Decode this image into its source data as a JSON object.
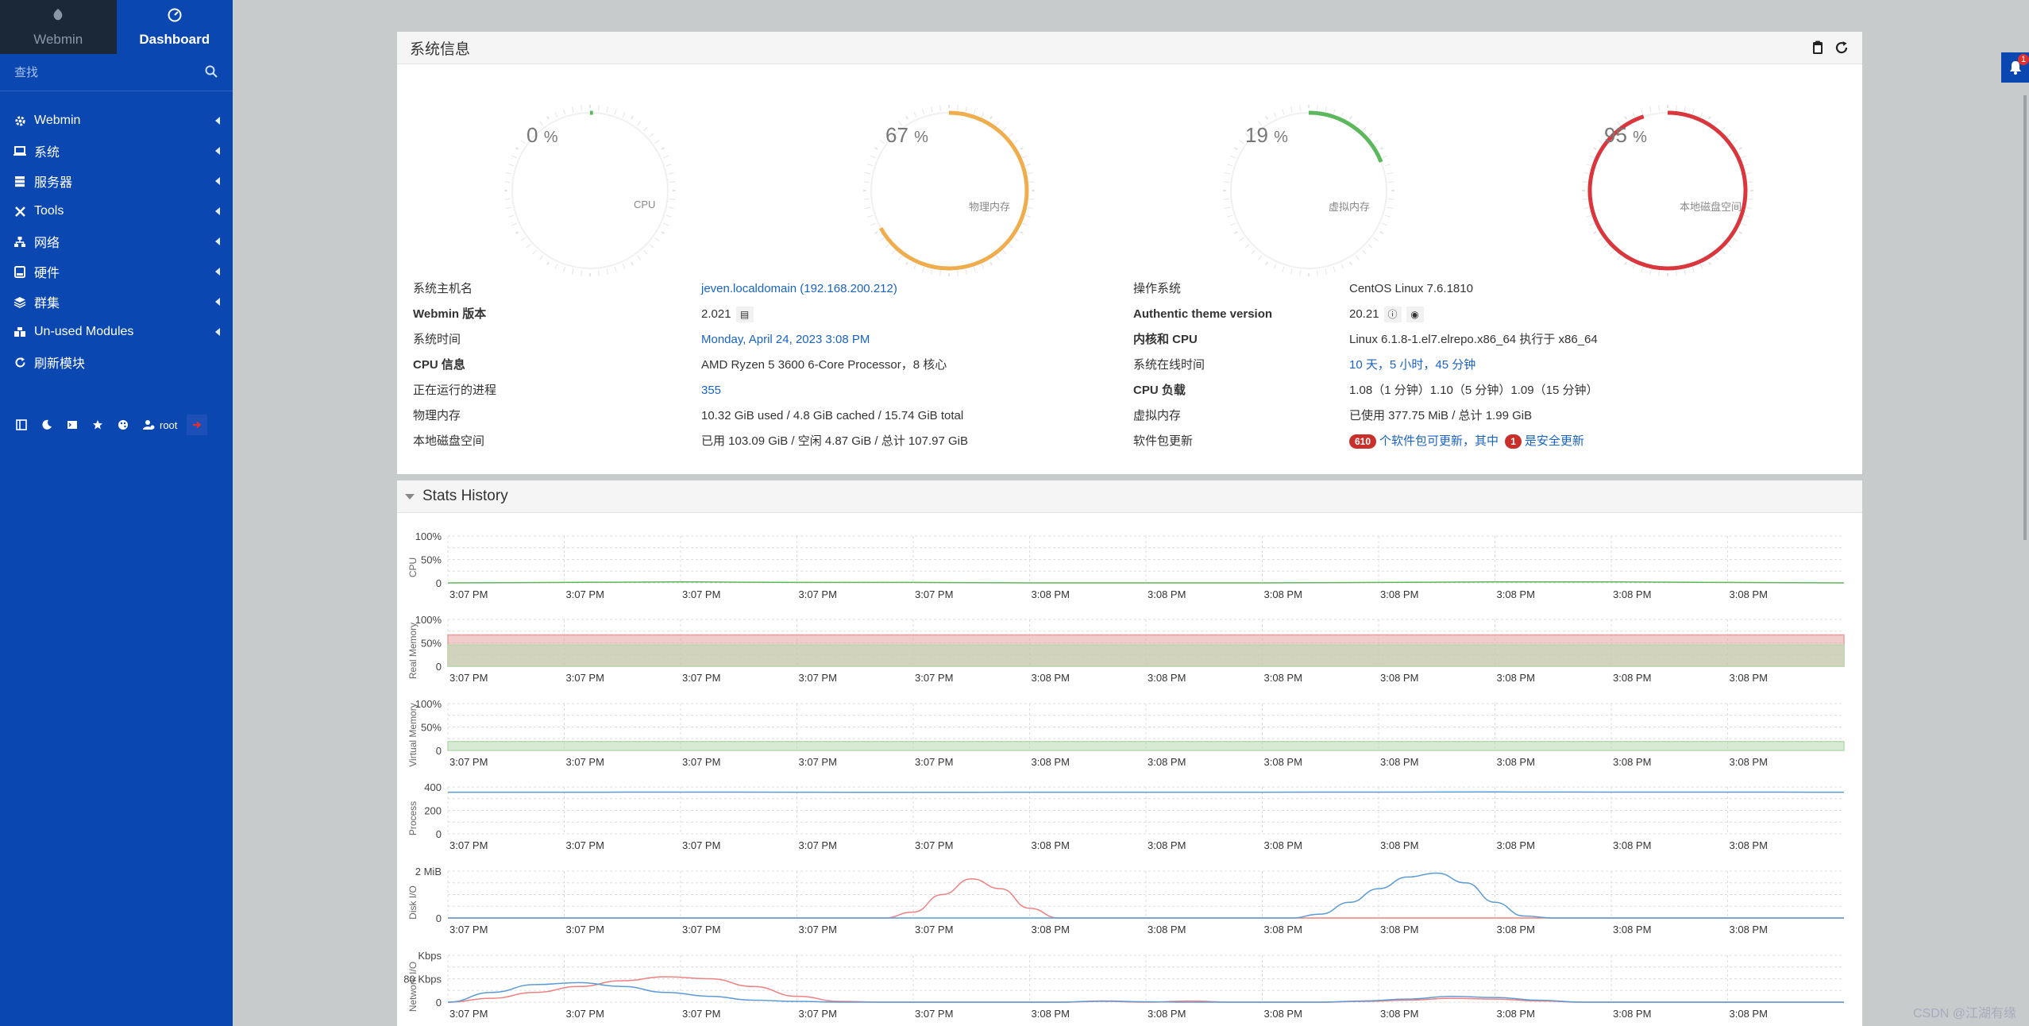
{
  "sidebar": {
    "tabs": [
      {
        "label": "Webmin",
        "icon": "webmin-logo-icon"
      },
      {
        "label": "Dashboard",
        "icon": "dashboard-gauge-icon"
      }
    ],
    "search_placeholder": "查找",
    "items": [
      {
        "label": "Webmin",
        "icon": "gear-icon"
      },
      {
        "label": "系统",
        "icon": "laptop-icon"
      },
      {
        "label": "服务器",
        "icon": "server-icon"
      },
      {
        "label": "Tools",
        "icon": "tools-icon"
      },
      {
        "label": "网络",
        "icon": "network-icon"
      },
      {
        "label": "硬件",
        "icon": "hdd-icon"
      },
      {
        "label": "群集",
        "icon": "layers-icon"
      },
      {
        "label": "Un-used Modules",
        "icon": "puzzle-icon"
      },
      {
        "label": "刷新模块",
        "icon": "refresh-icon"
      }
    ],
    "bottom": {
      "user": "root"
    }
  },
  "sysinfo": {
    "title": "系统信息",
    "gauges": [
      {
        "value": "0",
        "unit": "%",
        "label": "CPU",
        "percent": 0,
        "color": "#5cb85c"
      },
      {
        "value": "67",
        "unit": "%",
        "label": "物理内存",
        "percent": 67,
        "color": "#f0ad4e"
      },
      {
        "value": "19",
        "unit": "%",
        "label": "虚拟内存",
        "percent": 19,
        "color": "#5cb85c"
      },
      {
        "value": "95",
        "unit": "%",
        "label": "本地磁盘空间",
        "percent": 95,
        "color": "#d9363e"
      }
    ],
    "left": [
      {
        "label": "系统主机名",
        "value": "jeven.localdomain (192.168.200.212)"
      },
      {
        "label": "Webmin 版本",
        "value": "2.021"
      },
      {
        "label": "系统时间",
        "value": "Monday, April 24, 2023 3:08 PM"
      },
      {
        "label": "CPU 信息",
        "value": "AMD Ryzen 5 3600 6-Core Processor，8 核心"
      },
      {
        "label": "正在运行的进程",
        "value": "355"
      },
      {
        "label": "物理内存",
        "value": "10.32 GiB used / 4.8 GiB cached / 15.74 GiB total"
      },
      {
        "label": "本地磁盘空间",
        "value": "已用 103.09 GiB / 空闲 4.87 GiB / 总计 107.97 GiB"
      }
    ],
    "right": [
      {
        "label": "操作系统",
        "value": "CentOS Linux 7.6.1810"
      },
      {
        "label": "Authentic theme version",
        "value": "20.21"
      },
      {
        "label": "内核和 CPU",
        "value": "Linux 6.1.8-1.el7.elrepo.x86_64 执行于 x86_64"
      },
      {
        "label": "系统在线时间",
        "value": "10 天，5 小时，45 分钟"
      },
      {
        "label": "CPU 负载",
        "value": "1.08（1 分钟）1.10（5 分钟）1.09（15 分钟）"
      },
      {
        "label": "虚拟内存",
        "value": "已使用 377.75 MiB / 总计 1.99 GiB"
      },
      {
        "label": "软件包更新",
        "count": "610",
        "text1": "个软件包可更新，其中",
        "sec_count": "1",
        "text2": "是安全更新"
      }
    ]
  },
  "stats": {
    "title": "Stats History",
    "x_ticks": [
      "3:07 PM",
      "3:07 PM",
      "3:07 PM",
      "3:07 PM",
      "3:07 PM",
      "3:08 PM",
      "3:08 PM",
      "3:08 PM",
      "3:08 PM",
      "3:08 PM",
      "3:08 PM",
      "3:08 PM"
    ]
  },
  "chart_data": [
    {
      "type": "line",
      "title": "",
      "ylabel": "CPU",
      "y_ticks": [
        "100%",
        "50%",
        "0"
      ],
      "ylim": [
        0,
        100
      ],
      "series": [
        {
          "color": "#5cb85c",
          "values": [
            0,
            1,
            2,
            1,
            1,
            0,
            0,
            0,
            1,
            2,
            2,
            1,
            0
          ]
        }
      ]
    },
    {
      "type": "area",
      "title": "",
      "ylabel": "Real Memory",
      "y_ticks": [
        "100%",
        "50%",
        "0"
      ],
      "ylim": [
        0,
        100
      ],
      "series": [
        {
          "color": "#e8a0a0",
          "values": [
            67,
            67,
            67,
            67,
            67,
            67,
            67,
            67,
            67,
            67,
            67,
            67,
            67
          ]
        },
        {
          "color": "#b7dbb0",
          "values": [
            45,
            45,
            45,
            45,
            45,
            45,
            45,
            45,
            45,
            45,
            45,
            45,
            45
          ]
        }
      ]
    },
    {
      "type": "area",
      "title": "",
      "ylabel": "Virtual Memory",
      "y_ticks": [
        "100%",
        "50%",
        "0"
      ],
      "ylim": [
        0,
        100
      ],
      "series": [
        {
          "color": "#b7dbb0",
          "values": [
            19,
            19,
            19,
            19,
            19,
            19,
            19,
            19,
            19,
            19,
            19,
            19,
            19
          ]
        }
      ]
    },
    {
      "type": "line",
      "title": "",
      "ylabel": "Process",
      "y_ticks": [
        "400",
        "200",
        "0"
      ],
      "ylim": [
        0,
        400
      ],
      "series": [
        {
          "color": "#5b9bd5",
          "values": [
            355,
            355,
            356,
            355,
            354,
            355,
            355,
            355,
            356,
            357,
            356,
            356,
            355
          ]
        }
      ]
    },
    {
      "type": "line",
      "title": "",
      "ylabel": "Disk I/O",
      "y_ticks": [
        "2 MiB",
        "0"
      ],
      "ylim": [
        0,
        2.4
      ],
      "series": [
        {
          "color": "#f08080",
          "values": [
            0,
            0,
            0,
            0,
            0,
            0,
            0,
            0,
            0,
            0,
            0,
            0,
            0,
            0,
            0,
            0,
            0.3,
            1.2,
            2.0,
            1.5,
            0.5,
            0,
            0,
            0,
            0,
            0,
            0,
            0,
            0,
            0,
            0,
            0,
            0,
            0,
            0,
            0,
            0,
            0,
            0,
            0,
            0,
            0,
            0,
            0,
            0,
            0,
            0,
            0,
            0
          ]
        },
        {
          "color": "#5b9bd5",
          "values": [
            0,
            0,
            0,
            0,
            0,
            0,
            0,
            0,
            0,
            0,
            0,
            0,
            0,
            0,
            0,
            0,
            0,
            0,
            0,
            0,
            0,
            0,
            0,
            0,
            0,
            0,
            0,
            0,
            0,
            0,
            0.2,
            0.8,
            1.5,
            2.1,
            2.3,
            1.8,
            0.8,
            0.1,
            0,
            0,
            0,
            0,
            0,
            0,
            0,
            0,
            0,
            0,
            0
          ]
        }
      ]
    },
    {
      "type": "line",
      "title": "",
      "ylabel": "Network I/O",
      "y_ticks": [
        "Kbps",
        "80 Kbps",
        "0"
      ],
      "ylim": [
        0,
        120
      ],
      "series": [
        {
          "color": "#f08080",
          "values": [
            0,
            10,
            25,
            40,
            55,
            65,
            60,
            40,
            15,
            2,
            0,
            0,
            0,
            0,
            0,
            2,
            0,
            3,
            0,
            0,
            0,
            2,
            5,
            10,
            8,
            3,
            0,
            0,
            0,
            0,
            0,
            0,
            0
          ]
        },
        {
          "color": "#5b9bd5",
          "values": [
            0,
            25,
            45,
            50,
            40,
            25,
            15,
            5,
            2,
            0,
            0,
            0,
            0,
            0,
            0,
            3,
            1,
            0,
            0,
            0,
            0,
            3,
            8,
            15,
            12,
            5,
            0,
            0,
            0,
            0,
            0,
            0,
            0
          ]
        }
      ]
    }
  ],
  "footer": {
    "watermark": "CSDN @江湖有缘"
  }
}
